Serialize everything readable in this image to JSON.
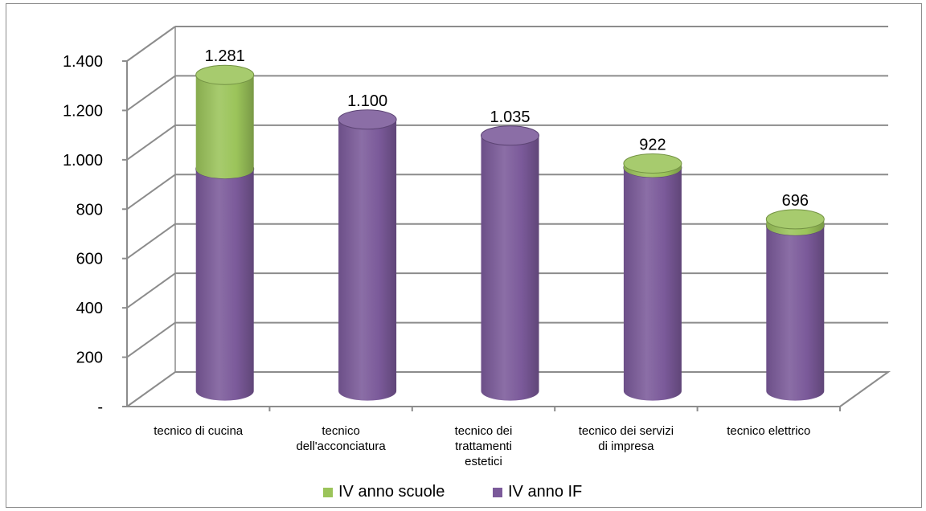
{
  "chart_data": {
    "type": "bar",
    "stacked": true,
    "three_d": true,
    "categories": [
      [
        "tecnico di cucina"
      ],
      [
        "tecnico",
        "dell'acconciatura"
      ],
      [
        "tecnico dei",
        "trattamenti",
        "estetici"
      ],
      [
        "tecnico dei servizi",
        "di impresa"
      ],
      [
        "tecnico elettrico"
      ]
    ],
    "series": [
      {
        "name": "IV anno IF",
        "color": "#7b5a9a",
        "values": [
          900,
          1100,
          1035,
          905,
          670
        ]
      },
      {
        "name": "IV anno scuole",
        "color": "#9bc45a",
        "values": [
          381,
          0,
          0,
          17,
          26
        ]
      }
    ],
    "totals": [
      1281,
      1100,
      1035,
      922,
      696
    ],
    "data_labels": [
      "1.281",
      "1.100",
      "1.035",
      "922",
      "696"
    ],
    "y_ticks": [
      {
        "value": 0,
        "label": "-"
      },
      {
        "value": 200,
        "label": "200"
      },
      {
        "value": 400,
        "label": "400"
      },
      {
        "value": 600,
        "label": "600"
      },
      {
        "value": 800,
        "label": "800"
      },
      {
        "value": 1000,
        "label": "1.000"
      },
      {
        "value": 1200,
        "label": "1.200"
      },
      {
        "value": 1400,
        "label": "1.400"
      }
    ],
    "ylim": [
      0,
      1400
    ],
    "grid": true,
    "legend_position": "bottom",
    "legend": [
      {
        "name": "IV anno scuole",
        "color": "#9bc45a"
      },
      {
        "name": "IV anno IF",
        "color": "#7b5a9a"
      }
    ]
  }
}
